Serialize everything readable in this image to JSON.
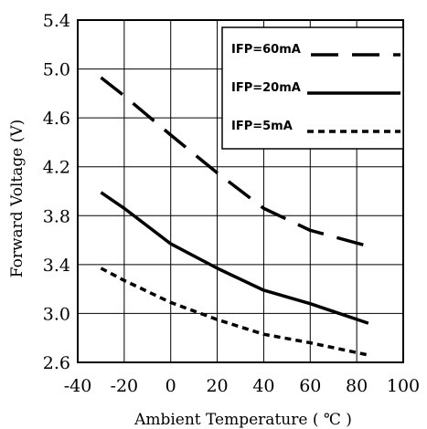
{
  "chart_data": {
    "type": "line",
    "xlabel": "Ambient Temperature ( ℃ )",
    "ylabel": "Forward Voltage (V)",
    "xlim": [
      -40,
      100
    ],
    "ylim": [
      2.6,
      5.4
    ],
    "xticks": [
      "-40",
      "-20",
      "0",
      "20",
      "40",
      "60",
      "80",
      "100"
    ],
    "yticks": [
      "2.6",
      "3.0",
      "3.4",
      "3.8",
      "4.2",
      "4.6",
      "5.0",
      "5.4"
    ],
    "grid": true,
    "legend_position": "top-right",
    "series": [
      {
        "name": "IFP=60mA",
        "style": "long-dash",
        "x": [
          -30,
          -20,
          0,
          20,
          40,
          60,
          85
        ],
        "y": [
          4.93,
          4.78,
          4.46,
          4.15,
          3.86,
          3.68,
          3.55
        ]
      },
      {
        "name": "IFP=20mA",
        "style": "solid",
        "x": [
          -30,
          -20,
          0,
          20,
          40,
          60,
          85
        ],
        "y": [
          3.99,
          3.86,
          3.57,
          3.37,
          3.19,
          3.08,
          2.92
        ]
      },
      {
        "name": "IFP=5mA",
        "style": "short-dash",
        "x": [
          -30,
          -20,
          0,
          20,
          40,
          60,
          85
        ],
        "y": [
          3.37,
          3.27,
          3.09,
          2.95,
          2.83,
          2.76,
          2.66
        ]
      }
    ]
  }
}
